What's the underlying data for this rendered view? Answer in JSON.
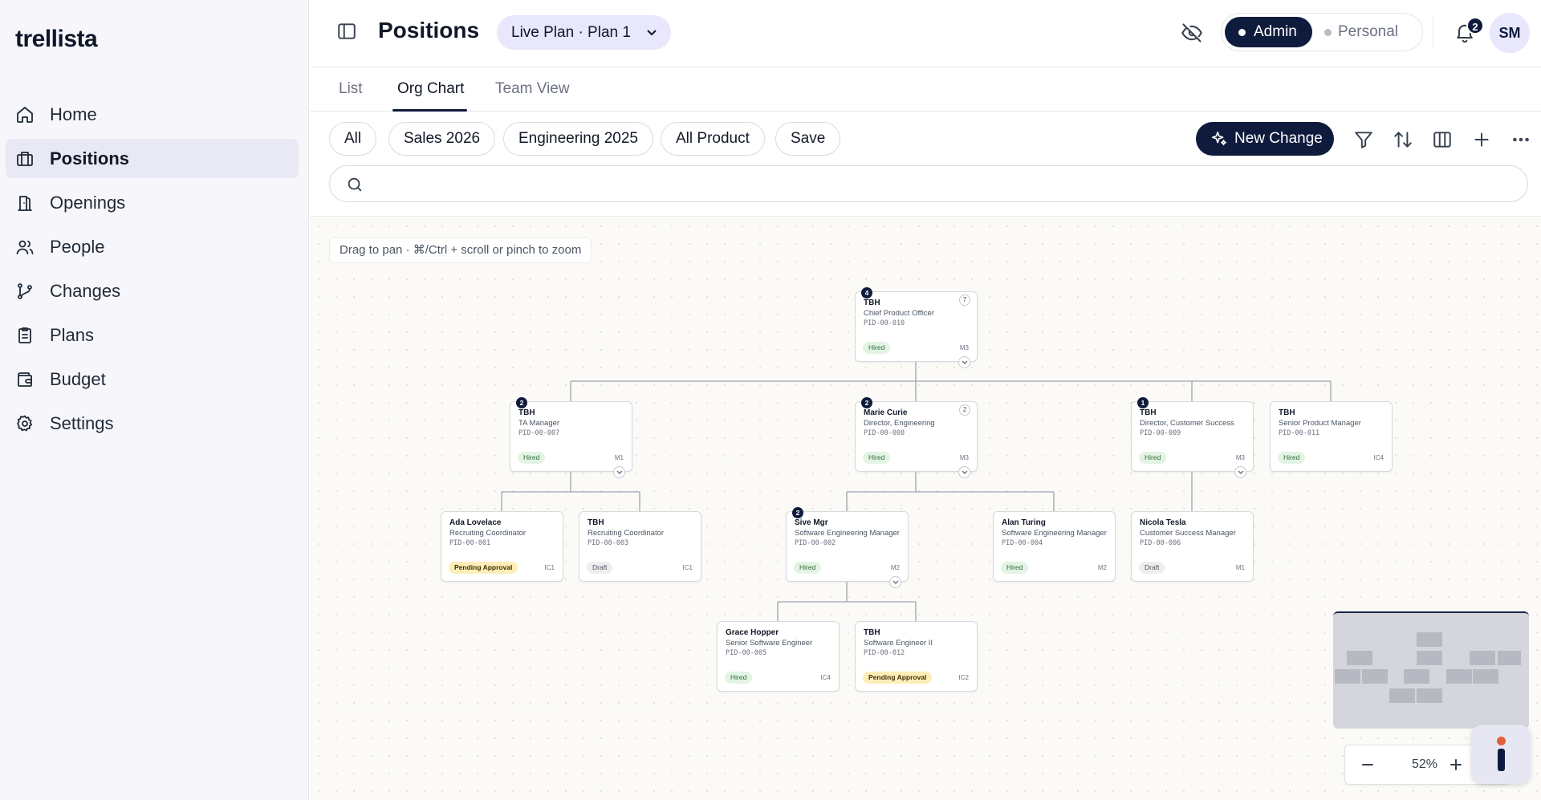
{
  "app": {
    "logo": "trellista"
  },
  "sidebar": {
    "items": [
      {
        "label": "Home",
        "icon": "home-icon"
      },
      {
        "label": "Positions",
        "icon": "briefcase-icon",
        "active": true
      },
      {
        "label": "Openings",
        "icon": "door-icon"
      },
      {
        "label": "People",
        "icon": "people-icon"
      },
      {
        "label": "Changes",
        "icon": "git-branch-icon"
      },
      {
        "label": "Plans",
        "icon": "clipboard-icon"
      },
      {
        "label": "Budget",
        "icon": "wallet-icon"
      },
      {
        "label": "Settings",
        "icon": "gear-icon"
      }
    ]
  },
  "header": {
    "title": "Positions",
    "plan_select": "Live Plan · Plan 1",
    "mode_admin": "Admin",
    "mode_personal": "Personal",
    "notification_count": "2",
    "avatar_initials": "SM"
  },
  "tabs": [
    {
      "label": "List"
    },
    {
      "label": "Org Chart",
      "active": true
    },
    {
      "label": "Team View"
    }
  ],
  "toolbar": {
    "chips": [
      "All",
      "Sales 2026",
      "Engineering 2025",
      "All Product",
      "Save"
    ],
    "new_change": "New Change",
    "search_placeholder": ""
  },
  "canvas": {
    "hint": "Drag to pan · ⌘/Ctrl + scroll or pinch to zoom",
    "zoom": "52%"
  },
  "org_chart": {
    "cards": [
      {
        "id": "cpo",
        "name": "TBH",
        "role": "Chief Product Officer",
        "pid": "PID-00-010",
        "status": "Hired",
        "level": "M3",
        "reports": "4",
        "count": "7",
        "expand": true
      },
      {
        "id": "ta",
        "name": "TBH",
        "role": "TA Manager",
        "pid": "PID-00-007",
        "status": "Hired",
        "level": "M1",
        "reports": "2",
        "expand": true
      },
      {
        "id": "eng",
        "name": "Marie Curie",
        "role": "Director, Engineering",
        "pid": "PID-00-008",
        "status": "Hired",
        "level": "M3",
        "reports": "2",
        "count": "2",
        "expand": true
      },
      {
        "id": "cs",
        "name": "TBH",
        "role": "Director, Customer Success",
        "pid": "PID-00-009",
        "status": "Hired",
        "level": "M3",
        "reports": "1",
        "expand": true
      },
      {
        "id": "spm",
        "name": "TBH",
        "role": "Senior Product Manager",
        "pid": "PID-00-011",
        "status": "Hired",
        "level": "IC4"
      },
      {
        "id": "ada",
        "name": "Ada Lovelace",
        "role": "Recruiting Coordinator",
        "pid": "PID-00-001",
        "status": "Pending Approval",
        "level": "IC1"
      },
      {
        "id": "rc",
        "name": "TBH",
        "role": "Recruiting Coordinator",
        "pid": "PID-00-003",
        "status": "Draft",
        "level": "IC1"
      },
      {
        "id": "sive",
        "name": "Sive Mgr",
        "role": "Software Engineering Manager",
        "pid": "PID-00-002",
        "status": "Hired",
        "level": "M2",
        "reports": "2",
        "expand": true
      },
      {
        "id": "alan",
        "name": "Alan Turing",
        "role": "Software Engineering Manager",
        "pid": "PID-00-004",
        "status": "Hired",
        "level": "M2"
      },
      {
        "id": "nicola",
        "name": "Nicola Tesla",
        "role": "Customer Success Manager",
        "pid": "PID-00-006",
        "status": "Draft",
        "level": "M1"
      },
      {
        "id": "grace",
        "name": "Grace Hopper",
        "role": "Senior Software Engineer",
        "pid": "PID-00-005",
        "status": "Hired",
        "level": "IC4"
      },
      {
        "id": "se2",
        "name": "TBH",
        "role": "Software Engineer II",
        "pid": "PID-00-012",
        "status": "Pending Approval",
        "level": "IC2"
      }
    ]
  },
  "colors": {
    "accent": "#0f1b3d",
    "accent_soft": "#e8e7fb",
    "hired": "#e3f4e4",
    "pending": "#fdeeb8",
    "draft": "#eeeeee"
  }
}
